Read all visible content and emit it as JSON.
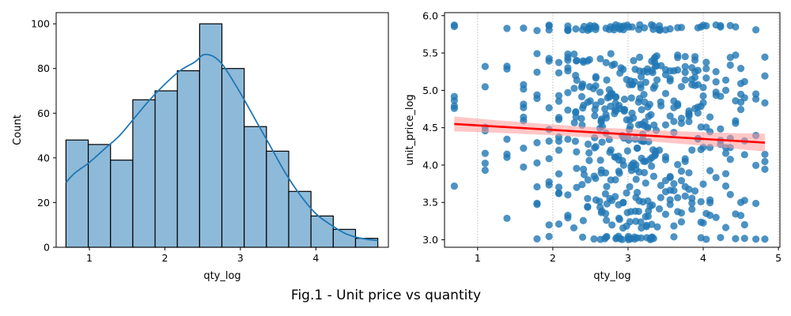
{
  "figure": {
    "caption": "Fig.1 - Unit price vs quantity"
  },
  "chart_data": [
    {
      "type": "bar",
      "subtype": "histogram-with-kde",
      "title": "",
      "xlabel": "qty_log",
      "ylabel": "Count",
      "xlim": [
        0.56,
        4.96
      ],
      "ylim": [
        0,
        105
      ],
      "xticks": [
        1,
        2,
        3,
        4
      ],
      "yticks": [
        0,
        20,
        40,
        60,
        80,
        100
      ],
      "bin_edges": [
        0.69,
        0.985,
        1.28,
        1.575,
        1.87,
        2.165,
        2.46,
        2.755,
        3.05,
        3.345,
        3.64,
        3.935,
        4.23,
        4.525,
        4.82
      ],
      "values": [
        48,
        46,
        39,
        66,
        70,
        79,
        100,
        80,
        54,
        43,
        25,
        14,
        8,
        4
      ],
      "kde": {
        "x": [
          0.69,
          0.8,
          1.0,
          1.2,
          1.4,
          1.6,
          1.8,
          2.0,
          2.2,
          2.4,
          2.5,
          2.6,
          2.7,
          2.8,
          3.0,
          3.2,
          3.4,
          3.6,
          3.8,
          4.0,
          4.2,
          4.4,
          4.6,
          4.82
        ],
        "y": [
          29,
          33,
          38,
          44,
          50,
          58,
          66,
          73,
          79,
          83,
          86,
          86,
          84,
          80,
          69,
          57,
          45,
          33,
          23,
          15,
          10,
          6,
          4,
          3
        ]
      },
      "colors": {
        "bar_fill": "#8ebad9",
        "bar_edge": "#000000",
        "kde_line": "#1f77b4"
      },
      "grid": false
    },
    {
      "type": "scatter",
      "subtype": "regression-plot",
      "title": "",
      "xlabel": "qty_log",
      "ylabel": "unit_price_log",
      "xlim": [
        0.56,
        5.02
      ],
      "ylim": [
        2.9,
        6.04
      ],
      "xticks": [
        1,
        2,
        3,
        4,
        5
      ],
      "yticks": [
        3.0,
        3.5,
        4.0,
        4.5,
        5.0,
        5.5,
        6.0
      ],
      "grid": "vertical dotted lines at x ticks",
      "points_qty_values": [
        0.69,
        1.1,
        1.39,
        1.61,
        1.79,
        1.95,
        2.08,
        2.2,
        2.3,
        2.4,
        2.48,
        2.56,
        2.64,
        2.71,
        2.77,
        2.83,
        2.89,
        2.94,
        3.0,
        3.04,
        3.09,
        3.14,
        3.18,
        3.22,
        3.26,
        3.3,
        3.33,
        3.37,
        3.43,
        3.5,
        3.56,
        3.61,
        3.66,
        3.71,
        3.76,
        3.81,
        3.85,
        3.89,
        3.93,
        3.97,
        4.0,
        4.04,
        4.09,
        4.17,
        4.23,
        4.3,
        4.36,
        4.43,
        4.5,
        4.55,
        4.7,
        4.82
      ],
      "regression": {
        "x": [
          0.69,
          4.82
        ],
        "y": [
          4.55,
          4.3
        ],
        "ci_halfwidth": [
          0.1,
          0.12
        ]
      },
      "colors": {
        "points": "#1f77b4",
        "line": "#ff0000",
        "band": "#ff9999"
      }
    }
  ]
}
